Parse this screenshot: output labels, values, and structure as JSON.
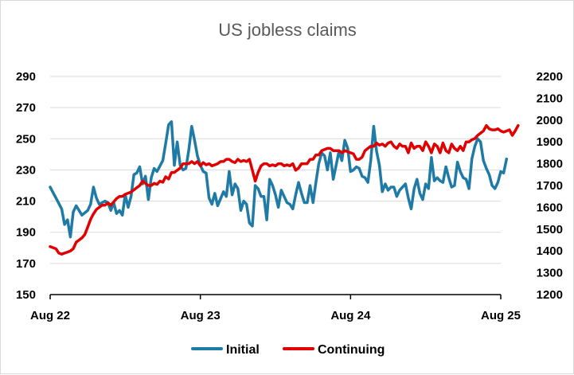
{
  "chart_data": {
    "type": "line",
    "title": "US jobless claims",
    "xlabel": "",
    "ylabel": "",
    "x_ticks": [
      "Aug 22",
      "Aug 23",
      "Aug 24",
      "Aug 25"
    ],
    "x_range": [
      0,
      156
    ],
    "y_left": {
      "lim": [
        150,
        290
      ],
      "ticks": [
        "150",
        "170",
        "190",
        "210",
        "230",
        "250",
        "270",
        "290"
      ]
    },
    "y_right": {
      "lim": [
        1200,
        2200
      ],
      "ticks": [
        "1200",
        "1300",
        "1400",
        "1500",
        "1600",
        "1700",
        "1800",
        "1900",
        "2000",
        "2100",
        "2200"
      ]
    },
    "grid": true,
    "legend_position": "bottom",
    "series": [
      {
        "name": "Initial",
        "axis": "left",
        "color": "#1f7ba5",
        "points": [
          [
            0,
            219
          ],
          [
            2,
            212
          ],
          [
            4,
            205
          ],
          [
            5,
            195
          ],
          [
            6,
            198
          ],
          [
            7,
            187
          ],
          [
            8,
            203
          ],
          [
            9,
            207
          ],
          [
            10,
            204
          ],
          [
            11,
            201
          ],
          [
            13,
            204
          ],
          [
            14,
            208
          ],
          [
            15,
            219
          ],
          [
            16,
            212
          ],
          [
            17,
            208
          ],
          [
            19,
            210
          ],
          [
            20,
            209
          ],
          [
            21,
            204
          ],
          [
            22,
            209
          ],
          [
            23,
            202
          ],
          [
            24,
            204
          ],
          [
            25,
            201
          ],
          [
            26,
            214
          ],
          [
            27,
            206
          ],
          [
            28,
            213
          ],
          [
            29,
            227
          ],
          [
            30,
            228
          ],
          [
            31,
            232
          ],
          [
            32,
            221
          ],
          [
            33,
            226
          ],
          [
            34,
            211
          ],
          [
            35,
            225
          ],
          [
            36,
            231
          ],
          [
            37,
            229
          ],
          [
            39,
            236
          ],
          [
            40,
            247
          ],
          [
            41,
            259
          ],
          [
            42,
            261
          ],
          [
            43,
            233
          ],
          [
            44,
            248
          ],
          [
            45,
            233
          ],
          [
            46,
            230
          ],
          [
            47,
            231
          ],
          [
            48,
            243
          ],
          [
            49,
            258
          ],
          [
            50,
            249
          ],
          [
            51,
            239
          ],
          [
            52,
            233
          ],
          [
            53,
            229
          ],
          [
            54,
            228
          ],
          [
            55,
            212
          ],
          [
            56,
            208
          ],
          [
            57,
            215
          ],
          [
            58,
            207
          ],
          [
            60,
            216
          ],
          [
            61,
            213
          ],
          [
            62,
            229
          ],
          [
            63,
            214
          ],
          [
            64,
            221
          ],
          [
            65,
            218
          ],
          [
            66,
            204
          ],
          [
            67,
            210
          ],
          [
            68,
            208
          ],
          [
            69,
            196
          ],
          [
            70,
            194
          ],
          [
            71,
            220
          ],
          [
            72,
            218
          ],
          [
            73,
            213
          ],
          [
            74,
            213
          ],
          [
            75,
            198
          ],
          [
            76,
            224
          ],
          [
            77,
            220
          ],
          [
            78,
            214
          ],
          [
            79,
            206
          ],
          [
            80,
            217
          ],
          [
            81,
            213
          ],
          [
            82,
            209
          ],
          [
            83,
            208
          ],
          [
            84,
            205
          ],
          [
            85,
            214
          ],
          [
            86,
            222
          ],
          [
            87,
            215
          ],
          [
            88,
            209
          ],
          [
            89,
            209
          ],
          [
            90,
            220
          ],
          [
            91,
            209
          ],
          [
            92,
            222
          ],
          [
            93,
            234
          ],
          [
            94,
            241
          ],
          [
            95,
            239
          ],
          [
            96,
            230
          ],
          [
            97,
            241
          ],
          [
            98,
            224
          ],
          [
            100,
            242
          ],
          [
            101,
            236
          ],
          [
            102,
            249
          ],
          [
            103,
            244
          ],
          [
            104,
            229
          ],
          [
            105,
            230
          ],
          [
            106,
            232
          ],
          [
            107,
            231
          ],
          [
            108,
            226
          ],
          [
            109,
            225
          ],
          [
            110,
            222
          ],
          [
            111,
            236
          ],
          [
            112,
            258
          ],
          [
            113,
            242
          ],
          [
            114,
            233
          ],
          [
            115,
            216
          ],
          [
            116,
            221
          ],
          [
            117,
            217
          ],
          [
            118,
            219
          ],
          [
            119,
            219
          ],
          [
            120,
            213
          ],
          [
            121,
            217
          ],
          [
            123,
            221
          ],
          [
            124,
            212
          ],
          [
            125,
            205
          ],
          [
            126,
            218
          ],
          [
            127,
            224
          ],
          [
            128,
            215
          ],
          [
            129,
            211
          ],
          [
            130,
            221
          ],
          [
            131,
            218
          ],
          [
            132,
            238
          ],
          [
            133,
            223
          ],
          [
            134,
            225
          ],
          [
            135,
            223
          ],
          [
            136,
            222
          ],
          [
            137,
            232
          ],
          [
            138,
            225
          ],
          [
            139,
            219
          ],
          [
            140,
            220
          ],
          [
            141,
            235
          ],
          [
            142,
            229
          ],
          [
            143,
            225
          ],
          [
            144,
            224
          ],
          [
            145,
            218
          ],
          [
            146,
            237
          ],
          [
            147,
            245
          ],
          [
            148,
            250
          ],
          [
            149,
            248
          ],
          [
            150,
            236
          ],
          [
            151,
            231
          ],
          [
            152,
            227
          ],
          [
            153,
            220
          ],
          [
            154,
            218
          ],
          [
            155,
            222
          ],
          [
            156,
            229
          ],
          [
            157,
            228
          ],
          [
            158,
            237
          ]
        ]
      },
      {
        "name": "Continuing",
        "axis": "right",
        "color": "#e00000",
        "points": [
          [
            0,
            1420
          ],
          [
            2,
            1410
          ],
          [
            3,
            1390
          ],
          [
            4,
            1385
          ],
          [
            5,
            1390
          ],
          [
            6,
            1395
          ],
          [
            7,
            1400
          ],
          [
            8,
            1410
          ],
          [
            9,
            1440
          ],
          [
            10,
            1450
          ],
          [
            11,
            1460
          ],
          [
            12,
            1475
          ],
          [
            13,
            1510
          ],
          [
            14,
            1545
          ],
          [
            15,
            1570
          ],
          [
            16,
            1590
          ],
          [
            17,
            1600
          ],
          [
            18,
            1610
          ],
          [
            19,
            1610
          ],
          [
            20,
            1620
          ],
          [
            21,
            1610
          ],
          [
            22,
            1625
          ],
          [
            23,
            1640
          ],
          [
            24,
            1650
          ],
          [
            25,
            1650
          ],
          [
            26,
            1660
          ],
          [
            27,
            1665
          ],
          [
            28,
            1670
          ],
          [
            29,
            1680
          ],
          [
            30,
            1690
          ],
          [
            31,
            1700
          ],
          [
            32,
            1720
          ],
          [
            33,
            1710
          ],
          [
            34,
            1700
          ],
          [
            35,
            1700
          ],
          [
            36,
            1710
          ],
          [
            37,
            1705
          ],
          [
            38,
            1720
          ],
          [
            39,
            1715
          ],
          [
            40,
            1740
          ],
          [
            41,
            1730
          ],
          [
            42,
            1760
          ],
          [
            43,
            1760
          ],
          [
            44,
            1770
          ],
          [
            45,
            1780
          ],
          [
            46,
            1800
          ],
          [
            47,
            1800
          ],
          [
            48,
            1800
          ],
          [
            49,
            1810
          ],
          [
            50,
            1800
          ],
          [
            51,
            1810
          ],
          [
            52,
            1790
          ],
          [
            53,
            1805
          ],
          [
            54,
            1795
          ],
          [
            55,
            1800
          ],
          [
            56,
            1790
          ],
          [
            57,
            1795
          ],
          [
            58,
            1800
          ],
          [
            59,
            1810
          ],
          [
            60,
            1810
          ],
          [
            61,
            1820
          ],
          [
            62,
            1820
          ],
          [
            63,
            1810
          ],
          [
            64,
            1805
          ],
          [
            65,
            1820
          ],
          [
            66,
            1810
          ],
          [
            67,
            1815
          ],
          [
            68,
            1810
          ],
          [
            69,
            1820
          ],
          [
            70,
            1770
          ],
          [
            71,
            1720
          ],
          [
            72,
            1760
          ],
          [
            73,
            1790
          ],
          [
            74,
            1800
          ],
          [
            75,
            1800
          ],
          [
            76,
            1790
          ],
          [
            77,
            1795
          ],
          [
            78,
            1790
          ],
          [
            79,
            1800
          ],
          [
            80,
            1800
          ],
          [
            81,
            1790
          ],
          [
            82,
            1795
          ],
          [
            83,
            1790
          ],
          [
            84,
            1800
          ],
          [
            85,
            1770
          ],
          [
            86,
            1780
          ],
          [
            87,
            1800
          ],
          [
            88,
            1800
          ],
          [
            89,
            1800
          ],
          [
            90,
            1820
          ],
          [
            91,
            1820
          ],
          [
            92,
            1840
          ],
          [
            93,
            1840
          ],
          [
            94,
            1860
          ],
          [
            95,
            1865
          ],
          [
            96,
            1870
          ],
          [
            97,
            1870
          ],
          [
            98,
            1860
          ],
          [
            99,
            1860
          ],
          [
            100,
            1860
          ],
          [
            101,
            1850
          ],
          [
            102,
            1860
          ],
          [
            103,
            1855
          ],
          [
            104,
            1850
          ],
          [
            105,
            1845
          ],
          [
            106,
            1820
          ],
          [
            107,
            1820
          ],
          [
            108,
            1830
          ],
          [
            109,
            1860
          ],
          [
            110,
            1870
          ],
          [
            111,
            1880
          ],
          [
            112,
            1880
          ],
          [
            113,
            1895
          ],
          [
            114,
            1885
          ],
          [
            115,
            1890
          ],
          [
            116,
            1880
          ],
          [
            117,
            1895
          ],
          [
            118,
            1900
          ],
          [
            119,
            1880
          ],
          [
            120,
            1870
          ],
          [
            121,
            1890
          ],
          [
            122,
            1880
          ],
          [
            123,
            1880
          ],
          [
            124,
            1850
          ],
          [
            125,
            1895
          ],
          [
            126,
            1870
          ],
          [
            127,
            1880
          ],
          [
            128,
            1880
          ],
          [
            129,
            1860
          ],
          [
            130,
            1900
          ],
          [
            131,
            1880
          ],
          [
            132,
            1850
          ],
          [
            133,
            1890
          ],
          [
            134,
            1880
          ],
          [
            135,
            1850
          ],
          [
            136,
            1895
          ],
          [
            137,
            1860
          ],
          [
            138,
            1850
          ],
          [
            139,
            1890
          ],
          [
            140,
            1870
          ],
          [
            141,
            1860
          ],
          [
            142,
            1880
          ],
          [
            143,
            1860
          ],
          [
            144,
            1900
          ],
          [
            145,
            1900
          ],
          [
            146,
            1910
          ],
          [
            147,
            1915
          ],
          [
            148,
            1930
          ],
          [
            149,
            1940
          ],
          [
            150,
            1950
          ],
          [
            151,
            1975
          ],
          [
            152,
            1960
          ],
          [
            153,
            1955
          ],
          [
            154,
            1955
          ],
          [
            155,
            1960
          ],
          [
            156,
            1950
          ],
          [
            157,
            1945
          ],
          [
            158,
            1950
          ],
          [
            159,
            1955
          ],
          [
            160,
            1930
          ],
          [
            161,
            1950
          ],
          [
            162,
            1975
          ]
        ]
      }
    ]
  }
}
